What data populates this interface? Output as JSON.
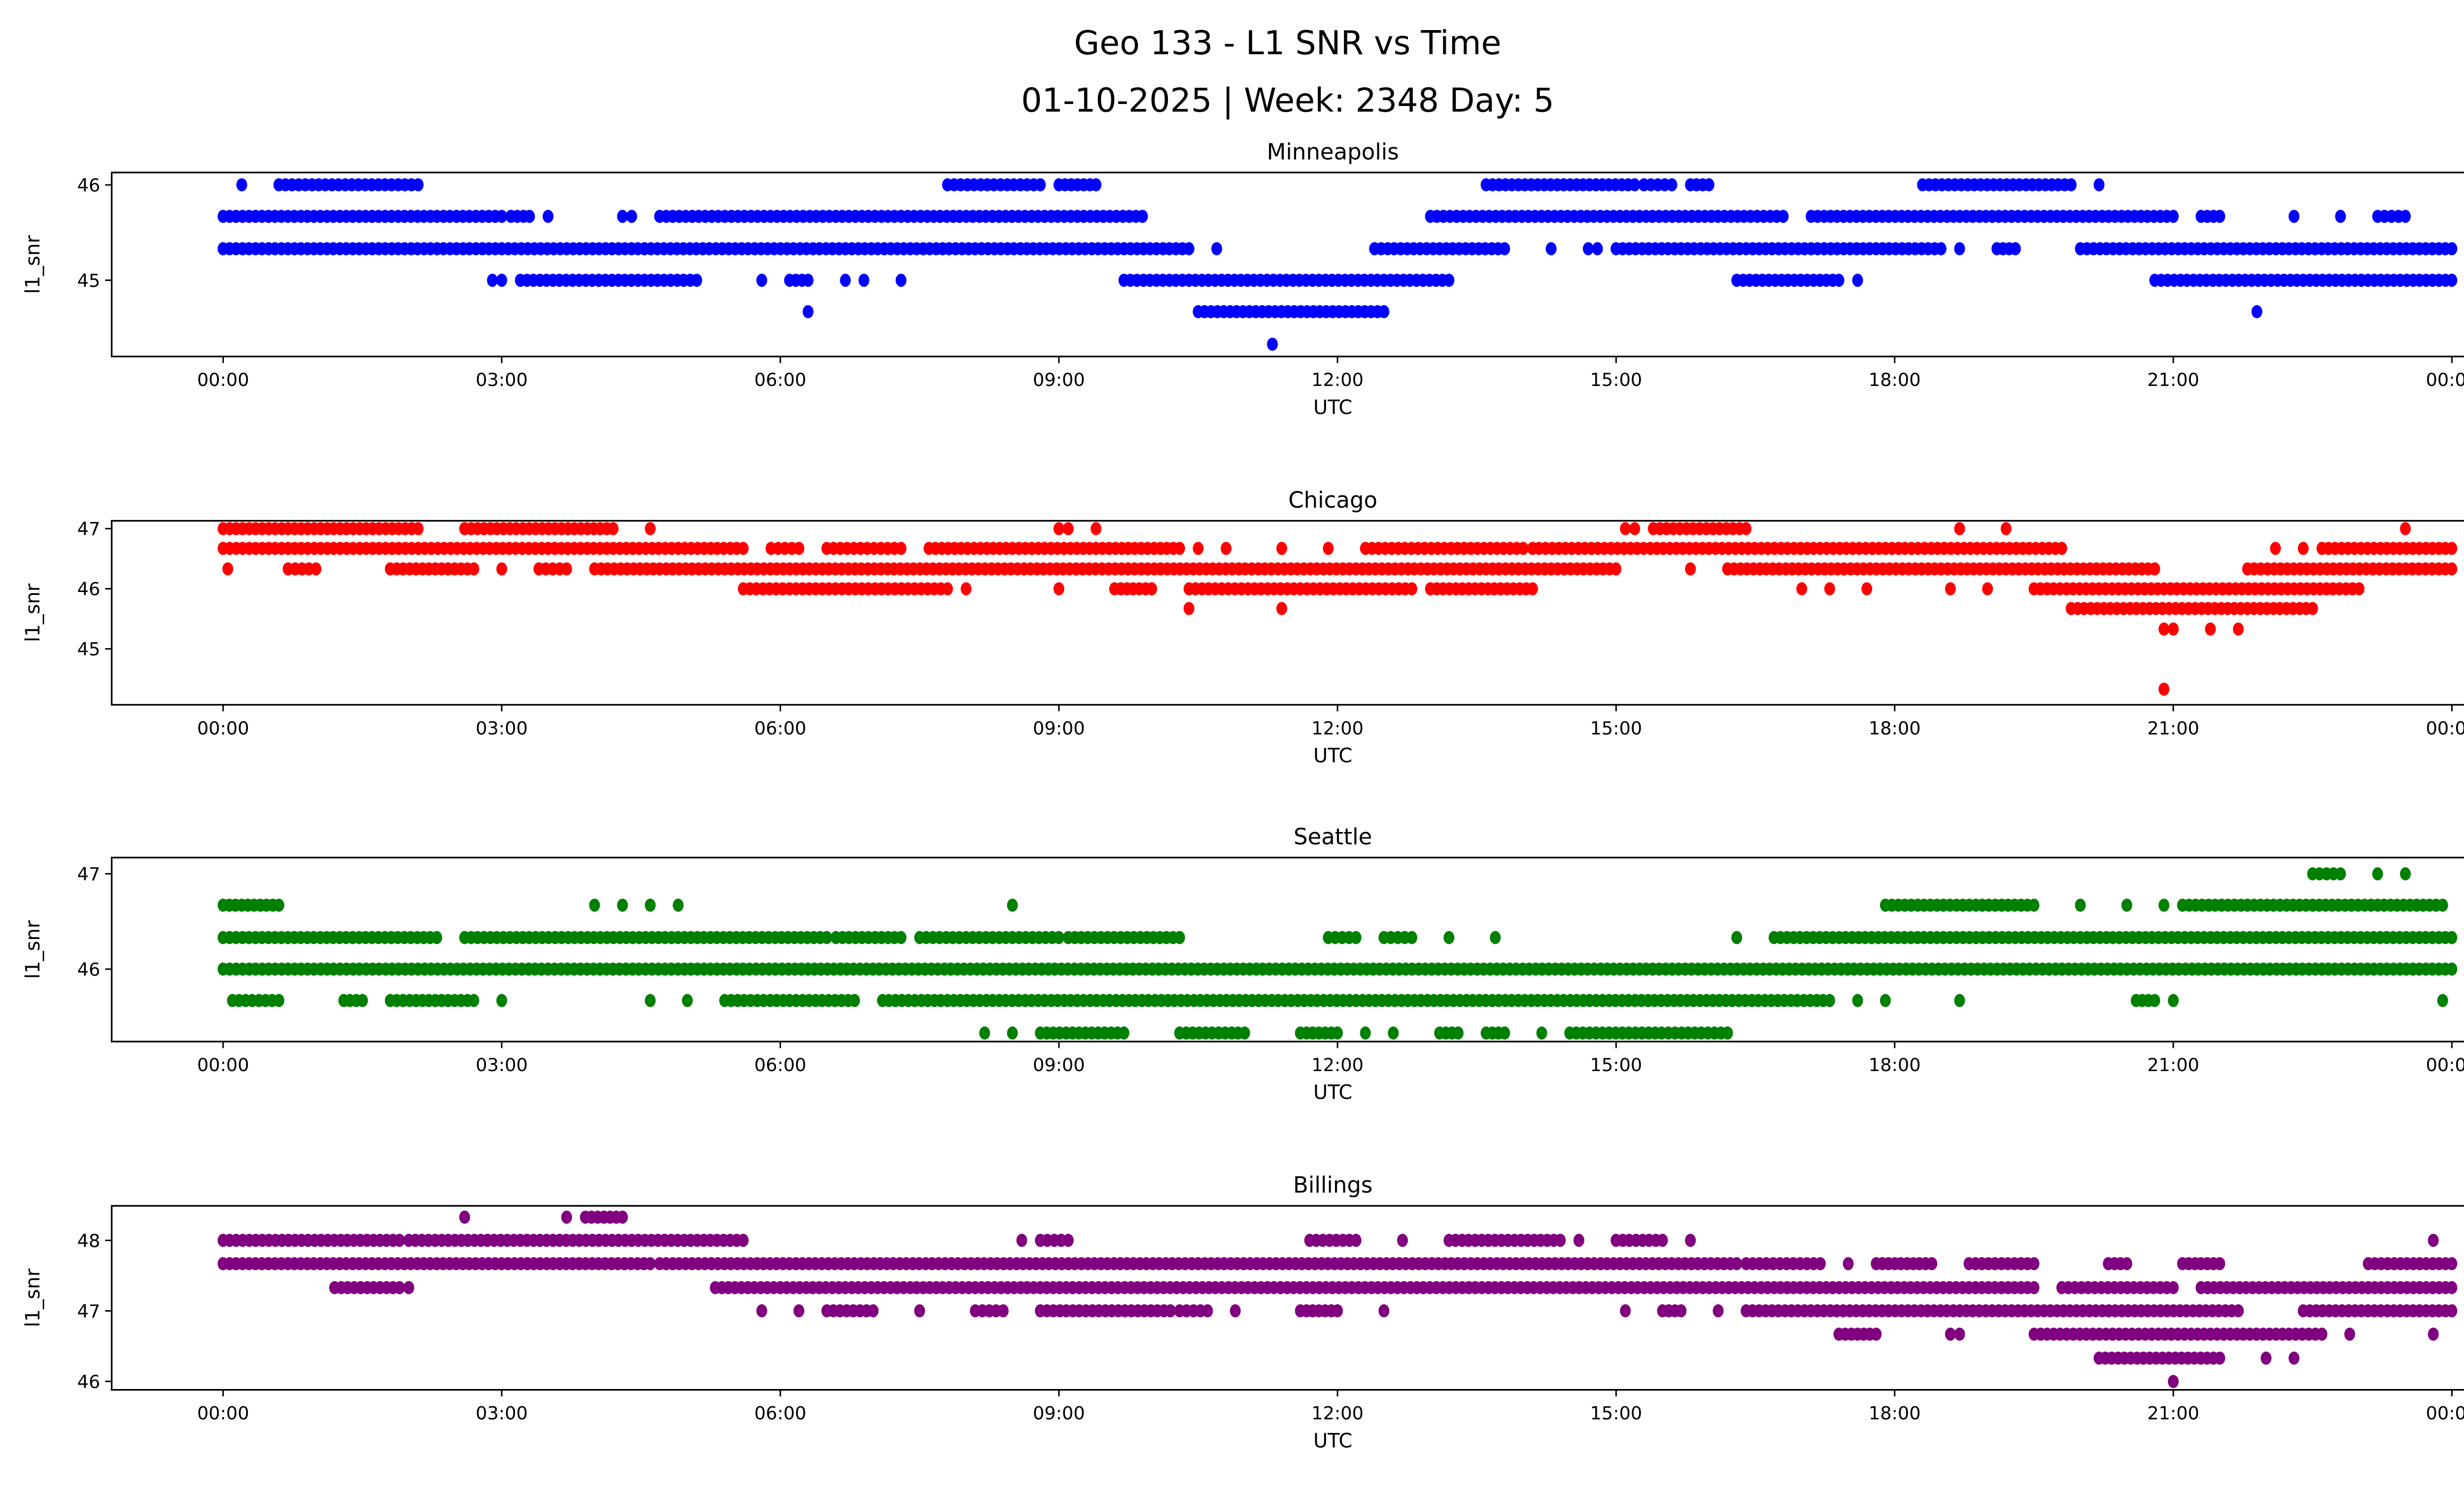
{
  "chart_data": {
    "type": "scatter",
    "title": "Geo 133 - L1 SNR vs Time",
    "subtitle": "01-10-2025 | Week: 2348 Day: 5",
    "x_tick_labels": [
      "00:00",
      "03:00",
      "06:00",
      "09:00",
      "12:00",
      "15:00",
      "18:00",
      "21:00",
      "00:00"
    ],
    "x_tick_hours": [
      0,
      3,
      6,
      9,
      12,
      15,
      18,
      21,
      24
    ],
    "xlim_hours": [
      -1.2,
      25.1
    ],
    "grid": false,
    "note": "runs are [snr_level, start_hour_utc, end_hour_utc]; densely sampled points",
    "panels": [
      {
        "title": "Minneapolis",
        "xlabel": "UTC",
        "ylabel": "l1_snr",
        "color": "#0000ff",
        "ylim": [
          44.2,
          46.13
        ],
        "yticks": [
          45,
          46
        ],
        "ytick_labels": [
          "45",
          "46"
        ],
        "runs": [
          [
            46,
            0.2,
            0.2
          ],
          [
            46,
            0.6,
            2.1
          ],
          [
            46,
            7.8,
            8.8
          ],
          [
            46,
            9.0,
            9.4
          ],
          [
            46,
            13.6,
            15.2
          ],
          [
            46,
            15.3,
            15.6
          ],
          [
            46,
            15.8,
            16.0
          ],
          [
            46,
            18.3,
            19.9
          ],
          [
            46,
            20.2,
            20.2
          ],
          [
            45.67,
            0,
            3.0
          ],
          [
            45.67,
            3.1,
            3.3
          ],
          [
            45.67,
            3.5,
            3.5
          ],
          [
            45.67,
            4.3,
            4.4
          ],
          [
            45.67,
            4.7,
            9.9
          ],
          [
            45.67,
            13.0,
            16.8
          ],
          [
            45.67,
            17.1,
            21.0
          ],
          [
            45.67,
            21.3,
            21.5
          ],
          [
            45.67,
            22.3,
            22.3
          ],
          [
            45.67,
            22.8,
            22.8
          ],
          [
            45.67,
            23.2,
            23.5
          ],
          [
            45.33,
            0,
            10.4
          ],
          [
            45.33,
            10.7,
            10.7
          ],
          [
            45.33,
            12.4,
            13.8
          ],
          [
            45.33,
            14.3,
            14.3
          ],
          [
            45.33,
            14.7,
            14.8
          ],
          [
            45.33,
            15.0,
            18.5
          ],
          [
            45.33,
            18.7,
            18.7
          ],
          [
            45.33,
            19.1,
            19.3
          ],
          [
            45.33,
            20.0,
            24
          ],
          [
            45,
            2.9,
            3.0
          ],
          [
            45,
            3.2,
            5.1
          ],
          [
            45,
            5.8,
            5.8
          ],
          [
            45,
            6.1,
            6.3
          ],
          [
            45,
            6.7,
            6.7
          ],
          [
            45,
            6.9,
            6.9
          ],
          [
            45,
            7.3,
            7.3
          ],
          [
            45,
            9.7,
            13.2
          ],
          [
            45,
            16.3,
            17.4
          ],
          [
            45,
            17.6,
            17.6
          ],
          [
            45,
            20.8,
            24
          ],
          [
            44.67,
            6.3,
            6.3
          ],
          [
            44.67,
            10.5,
            12.5
          ],
          [
            44.67,
            21.9,
            21.9
          ],
          [
            44.33,
            11.3,
            11.3
          ]
        ]
      },
      {
        "title": "Chicago",
        "xlabel": "UTC",
        "ylabel": "l1_snr",
        "color": "#ff0000",
        "ylim": [
          44.07,
          47.13
        ],
        "yticks": [
          45,
          46,
          47
        ],
        "ytick_labels": [
          "45",
          "46",
          "47"
        ],
        "runs": [
          [
            47,
            0,
            2.1
          ],
          [
            47,
            2.6,
            4.2
          ],
          [
            47,
            4.6,
            4.6
          ],
          [
            47,
            9.0,
            9.1
          ],
          [
            47,
            9.4,
            9.4
          ],
          [
            47,
            15.1,
            15.2
          ],
          [
            47,
            15.4,
            16.4
          ],
          [
            47,
            18.7,
            18.7
          ],
          [
            47,
            19.2,
            19.2
          ],
          [
            47,
            23.5,
            23.5
          ],
          [
            46.67,
            0,
            5.6
          ],
          [
            46.67,
            5.9,
            6.2
          ],
          [
            46.67,
            6.5,
            7.3
          ],
          [
            46.67,
            7.6,
            10.3
          ],
          [
            46.67,
            10.5,
            10.5
          ],
          [
            46.67,
            10.8,
            10.8
          ],
          [
            46.67,
            11.4,
            11.4
          ],
          [
            46.67,
            11.9,
            11.9
          ],
          [
            46.67,
            12.3,
            14.0
          ],
          [
            46.67,
            14.1,
            19.8
          ],
          [
            46.67,
            22.1,
            22.1
          ],
          [
            46.67,
            22.4,
            22.4
          ],
          [
            46.67,
            22.6,
            24
          ],
          [
            46.33,
            0.05,
            0.05
          ],
          [
            46.33,
            0.7,
            1.0
          ],
          [
            46.33,
            1.8,
            2.7
          ],
          [
            46.33,
            3.0,
            3.0
          ],
          [
            46.33,
            3.4,
            3.7
          ],
          [
            46.33,
            4.0,
            15.0
          ],
          [
            46.33,
            15.8,
            15.8
          ],
          [
            46.33,
            16.2,
            20.8
          ],
          [
            46.33,
            21.8,
            24
          ],
          [
            46,
            5.6,
            7.8
          ],
          [
            46,
            8.0,
            8.0
          ],
          [
            46,
            9.0,
            9.0
          ],
          [
            46,
            9.6,
            10.0
          ],
          [
            46,
            10.4,
            12.8
          ],
          [
            46,
            13.0,
            14.1
          ],
          [
            46,
            17.0,
            17.0
          ],
          [
            46,
            17.3,
            17.3
          ],
          [
            46,
            17.7,
            17.7
          ],
          [
            46,
            18.6,
            18.6
          ],
          [
            46,
            19.0,
            19.0
          ],
          [
            46,
            19.5,
            23.0
          ],
          [
            45.67,
            10.4,
            10.4
          ],
          [
            45.67,
            11.4,
            11.4
          ],
          [
            45.67,
            19.9,
            22.5
          ],
          [
            45.33,
            20.9,
            21.0
          ],
          [
            45.33,
            21.4,
            21.4
          ],
          [
            45.33,
            21.7,
            21.7
          ],
          [
            44.33,
            20.9,
            20.9
          ]
        ]
      },
      {
        "title": "Seattle",
        "xlabel": "UTC",
        "ylabel": "l1_snr",
        "color": "#008000",
        "ylim": [
          45.24,
          47.17
        ],
        "yticks": [
          46,
          47
        ],
        "ytick_labels": [
          "46",
          "47"
        ],
        "runs": [
          [
            47,
            22.5,
            22.8
          ],
          [
            47,
            23.2,
            23.2
          ],
          [
            47,
            23.5,
            23.5
          ],
          [
            46.67,
            0,
            0.6
          ],
          [
            46.67,
            4.0,
            4.0
          ],
          [
            46.67,
            4.3,
            4.3
          ],
          [
            46.67,
            4.6,
            4.6
          ],
          [
            46.67,
            4.9,
            4.9
          ],
          [
            46.67,
            8.5,
            8.5
          ],
          [
            46.67,
            17.9,
            19.5
          ],
          [
            46.67,
            20.0,
            20.0
          ],
          [
            46.67,
            20.5,
            20.5
          ],
          [
            46.67,
            20.9,
            20.9
          ],
          [
            46.67,
            21.1,
            23.9
          ],
          [
            46.33,
            0,
            2.3
          ],
          [
            46.33,
            2.6,
            6.5
          ],
          [
            46.33,
            6.6,
            7.3
          ],
          [
            46.33,
            7.5,
            9.0
          ],
          [
            46.33,
            9.1,
            10.3
          ],
          [
            46.33,
            11.9,
            12.2
          ],
          [
            46.33,
            12.5,
            12.8
          ],
          [
            46.33,
            13.2,
            13.2
          ],
          [
            46.33,
            13.7,
            13.7
          ],
          [
            46.33,
            16.3,
            16.3
          ],
          [
            46.33,
            16.7,
            24
          ],
          [
            46,
            0,
            24
          ],
          [
            45.67,
            0.1,
            0.6
          ],
          [
            45.67,
            1.3,
            1.5
          ],
          [
            45.67,
            1.8,
            2.7
          ],
          [
            45.67,
            3.0,
            3.0
          ],
          [
            45.67,
            4.6,
            4.6
          ],
          [
            45.67,
            5.0,
            5.0
          ],
          [
            45.67,
            5.4,
            6.8
          ],
          [
            45.67,
            7.1,
            17.3
          ],
          [
            45.67,
            17.6,
            17.6
          ],
          [
            45.67,
            17.9,
            17.9
          ],
          [
            45.67,
            18.7,
            18.7
          ],
          [
            45.67,
            20.6,
            20.8
          ],
          [
            45.67,
            21.0,
            21.0
          ],
          [
            45.67,
            23.9,
            23.9
          ],
          [
            45.33,
            8.2,
            8.2
          ],
          [
            45.33,
            8.5,
            8.5
          ],
          [
            45.33,
            8.8,
            9.7
          ],
          [
            45.33,
            10.3,
            11.0
          ],
          [
            45.33,
            11.6,
            12.0
          ],
          [
            45.33,
            12.3,
            12.3
          ],
          [
            45.33,
            12.6,
            12.6
          ],
          [
            45.33,
            13.1,
            13.3
          ],
          [
            45.33,
            13.6,
            13.8
          ],
          [
            45.33,
            14.2,
            14.2
          ],
          [
            45.33,
            14.5,
            16.2
          ]
        ]
      },
      {
        "title": "Billings",
        "xlabel": "UTC",
        "ylabel": "l1_snr",
        "color": "#800080",
        "ylim": [
          45.88,
          48.49
        ],
        "yticks": [
          46,
          47,
          48
        ],
        "ytick_labels": [
          "46",
          "47",
          "48"
        ],
        "runs": [
          [
            48.33,
            2.6,
            2.6
          ],
          [
            48.33,
            3.7,
            3.7
          ],
          [
            48.33,
            3.9,
            4.3
          ],
          [
            48,
            0,
            1.9
          ],
          [
            48,
            2.0,
            5.6
          ],
          [
            48,
            8.6,
            8.6
          ],
          [
            48,
            8.8,
            9.1
          ],
          [
            48,
            11.7,
            12.2
          ],
          [
            48,
            12.7,
            12.7
          ],
          [
            48,
            13.2,
            14.4
          ],
          [
            48,
            14.6,
            14.6
          ],
          [
            48,
            15.0,
            15.5
          ],
          [
            48,
            15.8,
            15.8
          ],
          [
            48,
            23.8,
            23.8
          ],
          [
            47.67,
            0,
            4.6
          ],
          [
            47.67,
            4.7,
            16.3
          ],
          [
            47.67,
            16.4,
            17.2
          ],
          [
            47.67,
            17.5,
            17.5
          ],
          [
            47.67,
            17.8,
            18.4
          ],
          [
            47.67,
            18.8,
            19.5
          ],
          [
            47.67,
            20.3,
            20.5
          ],
          [
            47.67,
            21.1,
            21.5
          ],
          [
            47.67,
            23.1,
            24
          ],
          [
            47.33,
            1.2,
            1.9
          ],
          [
            47.33,
            2.0,
            2.0
          ],
          [
            47.33,
            5.3,
            19.5
          ],
          [
            47.33,
            19.8,
            21.0
          ],
          [
            47.33,
            21.3,
            24
          ],
          [
            47,
            5.8,
            5.8
          ],
          [
            47,
            6.2,
            6.2
          ],
          [
            47,
            6.5,
            7.0
          ],
          [
            47,
            7.5,
            7.5
          ],
          [
            47,
            8.1,
            8.4
          ],
          [
            47,
            8.8,
            10.2
          ],
          [
            47,
            10.3,
            10.6
          ],
          [
            47,
            10.9,
            10.9
          ],
          [
            47,
            11.6,
            12.0
          ],
          [
            47,
            12.5,
            12.5
          ],
          [
            47,
            15.1,
            15.1
          ],
          [
            47,
            15.5,
            15.7
          ],
          [
            47,
            16.1,
            16.1
          ],
          [
            47,
            16.4,
            21.7
          ],
          [
            47,
            22.4,
            24
          ],
          [
            46.67,
            17.4,
            17.8
          ],
          [
            46.67,
            18.6,
            18.7
          ],
          [
            46.67,
            19.5,
            22.6
          ],
          [
            46.67,
            22.9,
            22.9
          ],
          [
            46.67,
            23.8,
            23.8
          ],
          [
            46.33,
            20.2,
            21.5
          ],
          [
            46.33,
            22.0,
            22.0
          ],
          [
            46.33,
            22.3,
            22.3
          ],
          [
            46,
            21.0,
            21.0
          ]
        ]
      }
    ]
  }
}
